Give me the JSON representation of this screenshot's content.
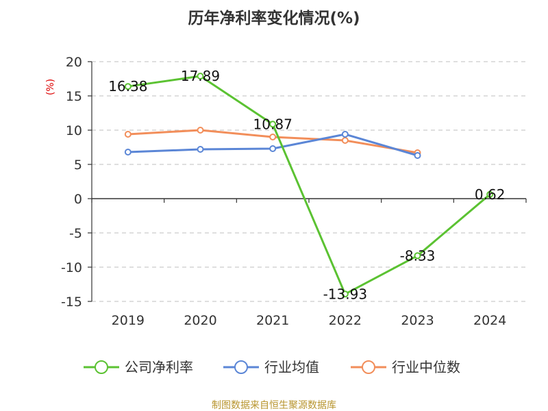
{
  "chart_data": {
    "type": "line",
    "title": "历年净利率变化情况(%)",
    "ylabel": "(%)",
    "categories": [
      "2019",
      "2020",
      "2021",
      "2022",
      "2023",
      "2024"
    ],
    "ylim": [
      -15,
      20
    ],
    "yticks": [
      20,
      15,
      10,
      5,
      0,
      -5,
      -10,
      -15
    ],
    "grid": true,
    "legend_position": "bottom",
    "series": [
      {
        "name": "公司净利率",
        "color": "#5bc232",
        "values": [
          16.38,
          17.89,
          10.87,
          -13.93,
          -8.33,
          0.62
        ],
        "labels": [
          "16.38",
          "17.89",
          "10.87",
          "-13.93",
          "-8.33",
          "0.62"
        ]
      },
      {
        "name": "行业均值",
        "color": "#5b86d6",
        "values": [
          6.8,
          7.2,
          7.3,
          9.4,
          6.3,
          null
        ]
      },
      {
        "name": "行业中位数",
        "color": "#f28e5a",
        "values": [
          9.4,
          10.0,
          9.0,
          8.5,
          6.7,
          null
        ]
      }
    ]
  },
  "source": "制图数据来自恒生聚源数据库",
  "colors": {
    "title": "#333333",
    "ylabel": "#dd0000",
    "source": "#b8952f",
    "grid": "#cccccc",
    "axis": "#333333"
  }
}
